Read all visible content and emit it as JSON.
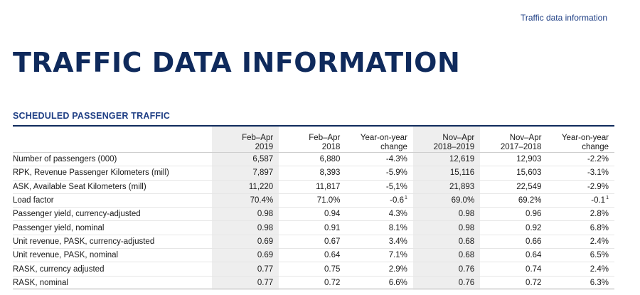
{
  "header": {
    "link_text": "Traffic data information"
  },
  "page": {
    "title": "TRAFFIC DATA INFORMATION"
  },
  "section": {
    "title": "SCHEDULED PASSENGER TRAFFIC"
  },
  "table": {
    "columns": [
      {
        "line1": "Feb–Apr",
        "line2": "2019",
        "shaded": true
      },
      {
        "line1": "Feb–Apr",
        "line2": "2018",
        "shaded": false
      },
      {
        "line1": "Year-on-year",
        "line2": "change",
        "shaded": false
      },
      {
        "line1": "Nov–Apr",
        "line2": "2018–2019",
        "shaded": true
      },
      {
        "line1": "Nov–Apr",
        "line2": "2017–2018",
        "shaded": false
      },
      {
        "line1": "Year-on-year",
        "line2": "change",
        "shaded": false
      }
    ],
    "rows": [
      {
        "label": "Number of passengers (000)",
        "v": [
          "6,587",
          "6,880",
          "-4.3%",
          "12,619",
          "12,903",
          "-2.2%"
        ]
      },
      {
        "label": "RPK, Revenue Passenger Kilometers (mill)",
        "v": [
          "7,897",
          "8,393",
          "-5.9%",
          "15,116",
          "15,603",
          "-3.1%"
        ]
      },
      {
        "label": "ASK, Available Seat Kilometers (mill)",
        "v": [
          "11,220",
          "11,817",
          "-5,1%",
          "21,893",
          "22,549",
          "-2.9%"
        ]
      },
      {
        "label": "Load factor",
        "v": [
          "70.4%",
          "71.0%",
          "-0.6",
          "69.0%",
          "69.2%",
          "-0.1"
        ],
        "footnotes": {
          "2": "1",
          "5": "1"
        }
      },
      {
        "label": "Passenger yield, currency-adjusted",
        "v": [
          "0.98",
          "0.94",
          "4.3%",
          "0.98",
          "0.96",
          "2.8%"
        ]
      },
      {
        "label": "Passenger yield, nominal",
        "v": [
          "0.98",
          "0.91",
          "8.1%",
          "0.98",
          "0.92",
          "6.8%"
        ]
      },
      {
        "label": "Unit revenue, PASK, currency-adjusted",
        "v": [
          "0.69",
          "0.67",
          "3.4%",
          "0.68",
          "0.66",
          "2.4%"
        ]
      },
      {
        "label": "Unit revenue, PASK, nominal",
        "v": [
          "0.69",
          "0.64",
          "7.1%",
          "0.68",
          "0.64",
          "6.5%"
        ]
      },
      {
        "label": "RASK, currency adjusted",
        "v": [
          "0.77",
          "0.75",
          "2.9%",
          "0.76",
          "0.74",
          "2.4%"
        ]
      },
      {
        "label": "RASK, nominal",
        "v": [
          "0.77",
          "0.72",
          "6.6%",
          "0.76",
          "0.72",
          "6.3%"
        ]
      }
    ]
  }
}
